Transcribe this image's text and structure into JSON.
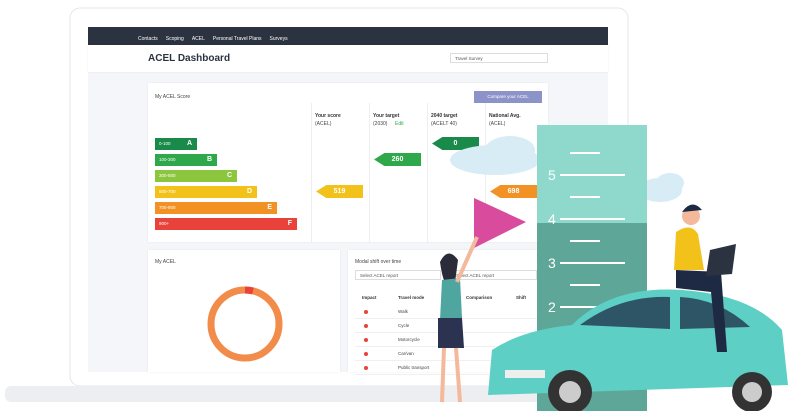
{
  "nav": {
    "items": [
      "Contacts",
      "Scoping",
      "ACEL",
      "Personal Travel Plans",
      "Surveys"
    ]
  },
  "header": {
    "title": "ACEL Dashboard",
    "dropdown": "Travel Survey"
  },
  "score_card": {
    "title": "My ACEL Score",
    "button": "Compare your ACEL",
    "bands": [
      {
        "range": "0-100",
        "grade": "A"
      },
      {
        "range": "100-300",
        "grade": "B"
      },
      {
        "range": "300-500",
        "grade": "C"
      },
      {
        "range": "500-700",
        "grade": "D"
      },
      {
        "range": "700-900",
        "grade": "E"
      },
      {
        "range": "900+",
        "grade": "F"
      }
    ],
    "columns": [
      {
        "heading": "Your score",
        "sub": "(ACEL)",
        "value": 519
      },
      {
        "heading": "Your target",
        "sub": "(2030)",
        "link": "Edit",
        "value": 260
      },
      {
        "heading": "2040 target",
        "sub": "(ACELT 40)",
        "value": 0
      },
      {
        "heading": "National Avg.",
        "sub": "(ACEL)",
        "value": 698
      }
    ]
  },
  "acel_card": {
    "title": "My ACEL"
  },
  "modal_card": {
    "title": "Modal shift over time",
    "selects": [
      "Select ACEL report",
      "Select ACEL report"
    ],
    "table": {
      "headers": [
        "Impact",
        "Travel mode",
        "Comparison",
        "Shift"
      ],
      "rows": [
        "Walk",
        "Cycle",
        "Motorcycle",
        "Car/van",
        "Public transport"
      ]
    }
  },
  "ruler": {
    "marks": [
      5,
      4,
      3,
      2
    ]
  }
}
